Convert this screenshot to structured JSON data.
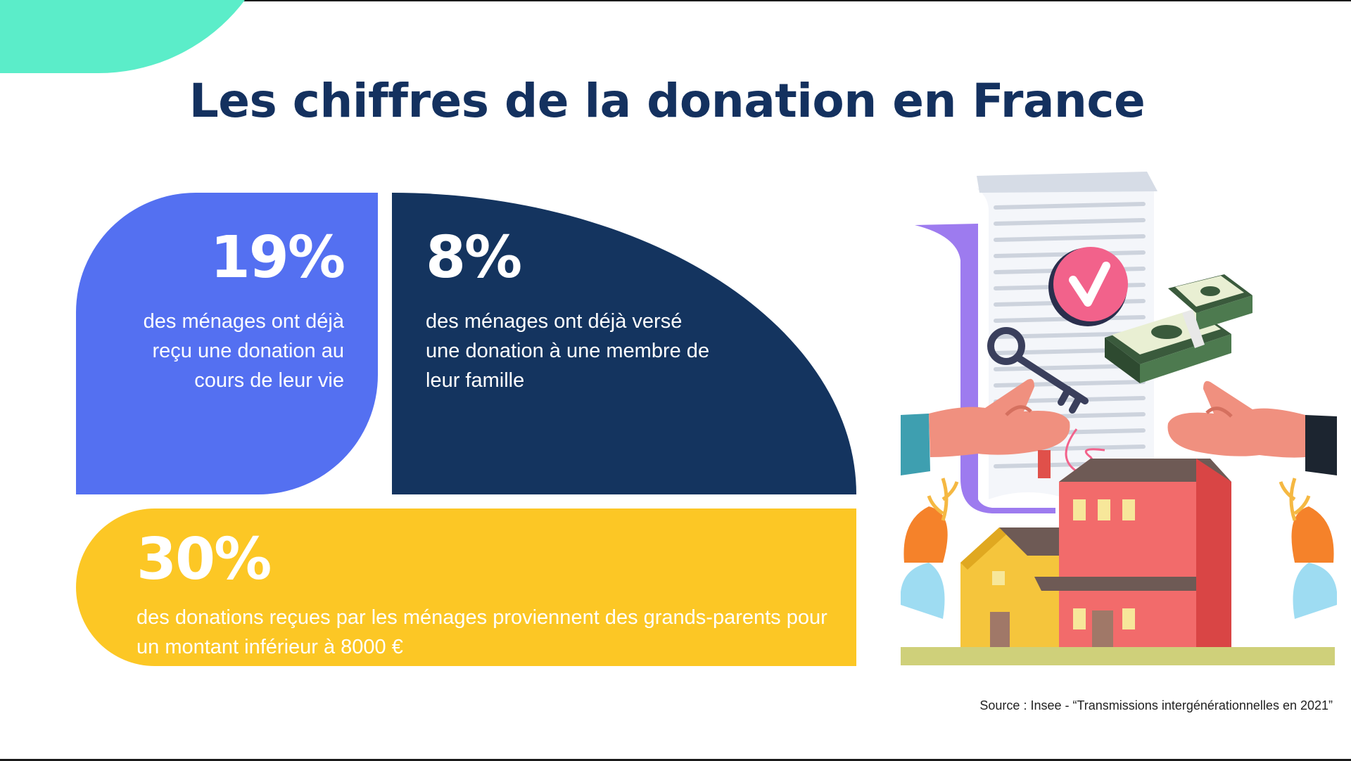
{
  "title": "Les chiffres de la donation en France",
  "cards": [
    {
      "value": "19%",
      "description": "des ménages ont déjà reçu une donation au cours de leur vie",
      "color": "#5470F1"
    },
    {
      "value": "8%",
      "description": "des ménages ont déjà versé une donation à une membre de leur famille",
      "color": "#14345F"
    },
    {
      "value": "30%",
      "description": "des donations reçues par les ménages proviennent des grands-parents pour un montant inférieur à 8000 €",
      "color": "#FCC725"
    }
  ],
  "source": "Source : Insee -  “Transmissions intergénérationnelles en 2021”",
  "colors": {
    "title": "#14315F",
    "accent": "#5BEDC9"
  },
  "illustration": {
    "icons": [
      "document-icon",
      "checkmark-icon",
      "key-icon",
      "money-icon",
      "hands-icon",
      "house-icon",
      "plants-icon"
    ]
  }
}
